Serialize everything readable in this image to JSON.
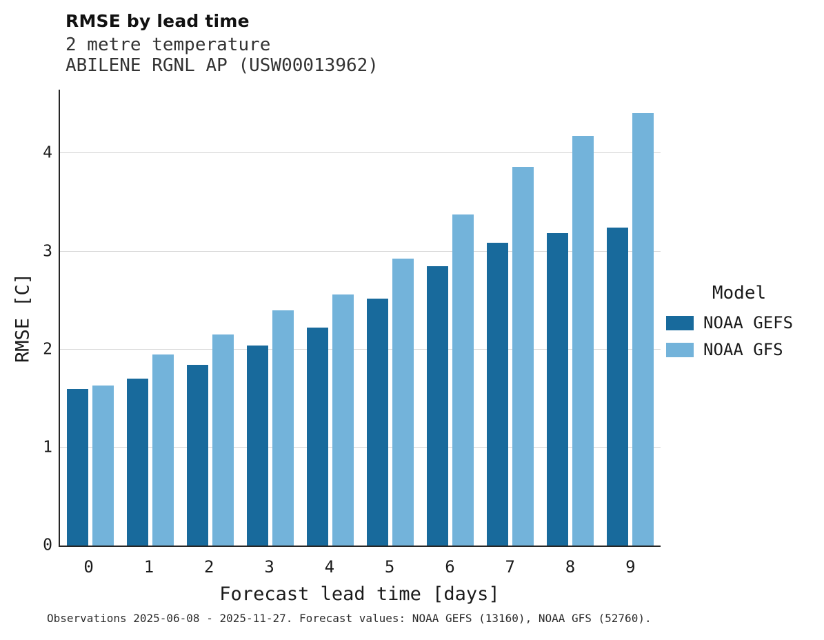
{
  "header": {
    "title": "RMSE by lead time",
    "subtitle1": "2 metre temperature",
    "subtitle2": "ABILENE RGNL AP (USW00013962)"
  },
  "legend": {
    "title": "Model",
    "items": [
      {
        "label": "NOAA GEFS",
        "color": "#186a9c"
      },
      {
        "label": "NOAA GFS",
        "color": "#73b3da"
      }
    ]
  },
  "caption": "Observations 2025-06-08 - 2025-11-27. Forecast values: NOAA GEFS (13160), NOAA GFS (52760).",
  "colors": {
    "gefs": "#186a9c",
    "gfs": "#73b3da",
    "grid": "#d6d6d6",
    "axis": "#262626"
  },
  "chart_data": {
    "type": "bar",
    "title": "RMSE by lead time",
    "subtitle": "2 metre temperature — ABILENE RGNL AP (USW00013962)",
    "xlabel": "Forecast lead time [days]",
    "ylabel": "RMSE [C]",
    "categories": [
      0,
      1,
      2,
      3,
      4,
      5,
      6,
      7,
      8,
      9
    ],
    "series": [
      {
        "name": "NOAA GEFS",
        "color": "#186a9c",
        "values": [
          1.6,
          1.7,
          1.84,
          2.04,
          2.22,
          2.52,
          2.85,
          3.09,
          3.19,
          3.24
        ]
      },
      {
        "name": "NOAA GFS",
        "color": "#73b3da",
        "values": [
          1.63,
          1.95,
          2.15,
          2.4,
          2.56,
          2.93,
          3.38,
          3.86,
          4.18,
          4.41
        ]
      }
    ],
    "ylim": [
      0,
      4.65
    ],
    "yticks": [
      0,
      1,
      2,
      3,
      4
    ],
    "grid": true,
    "legend_position": "right",
    "legend_title": "Model"
  }
}
